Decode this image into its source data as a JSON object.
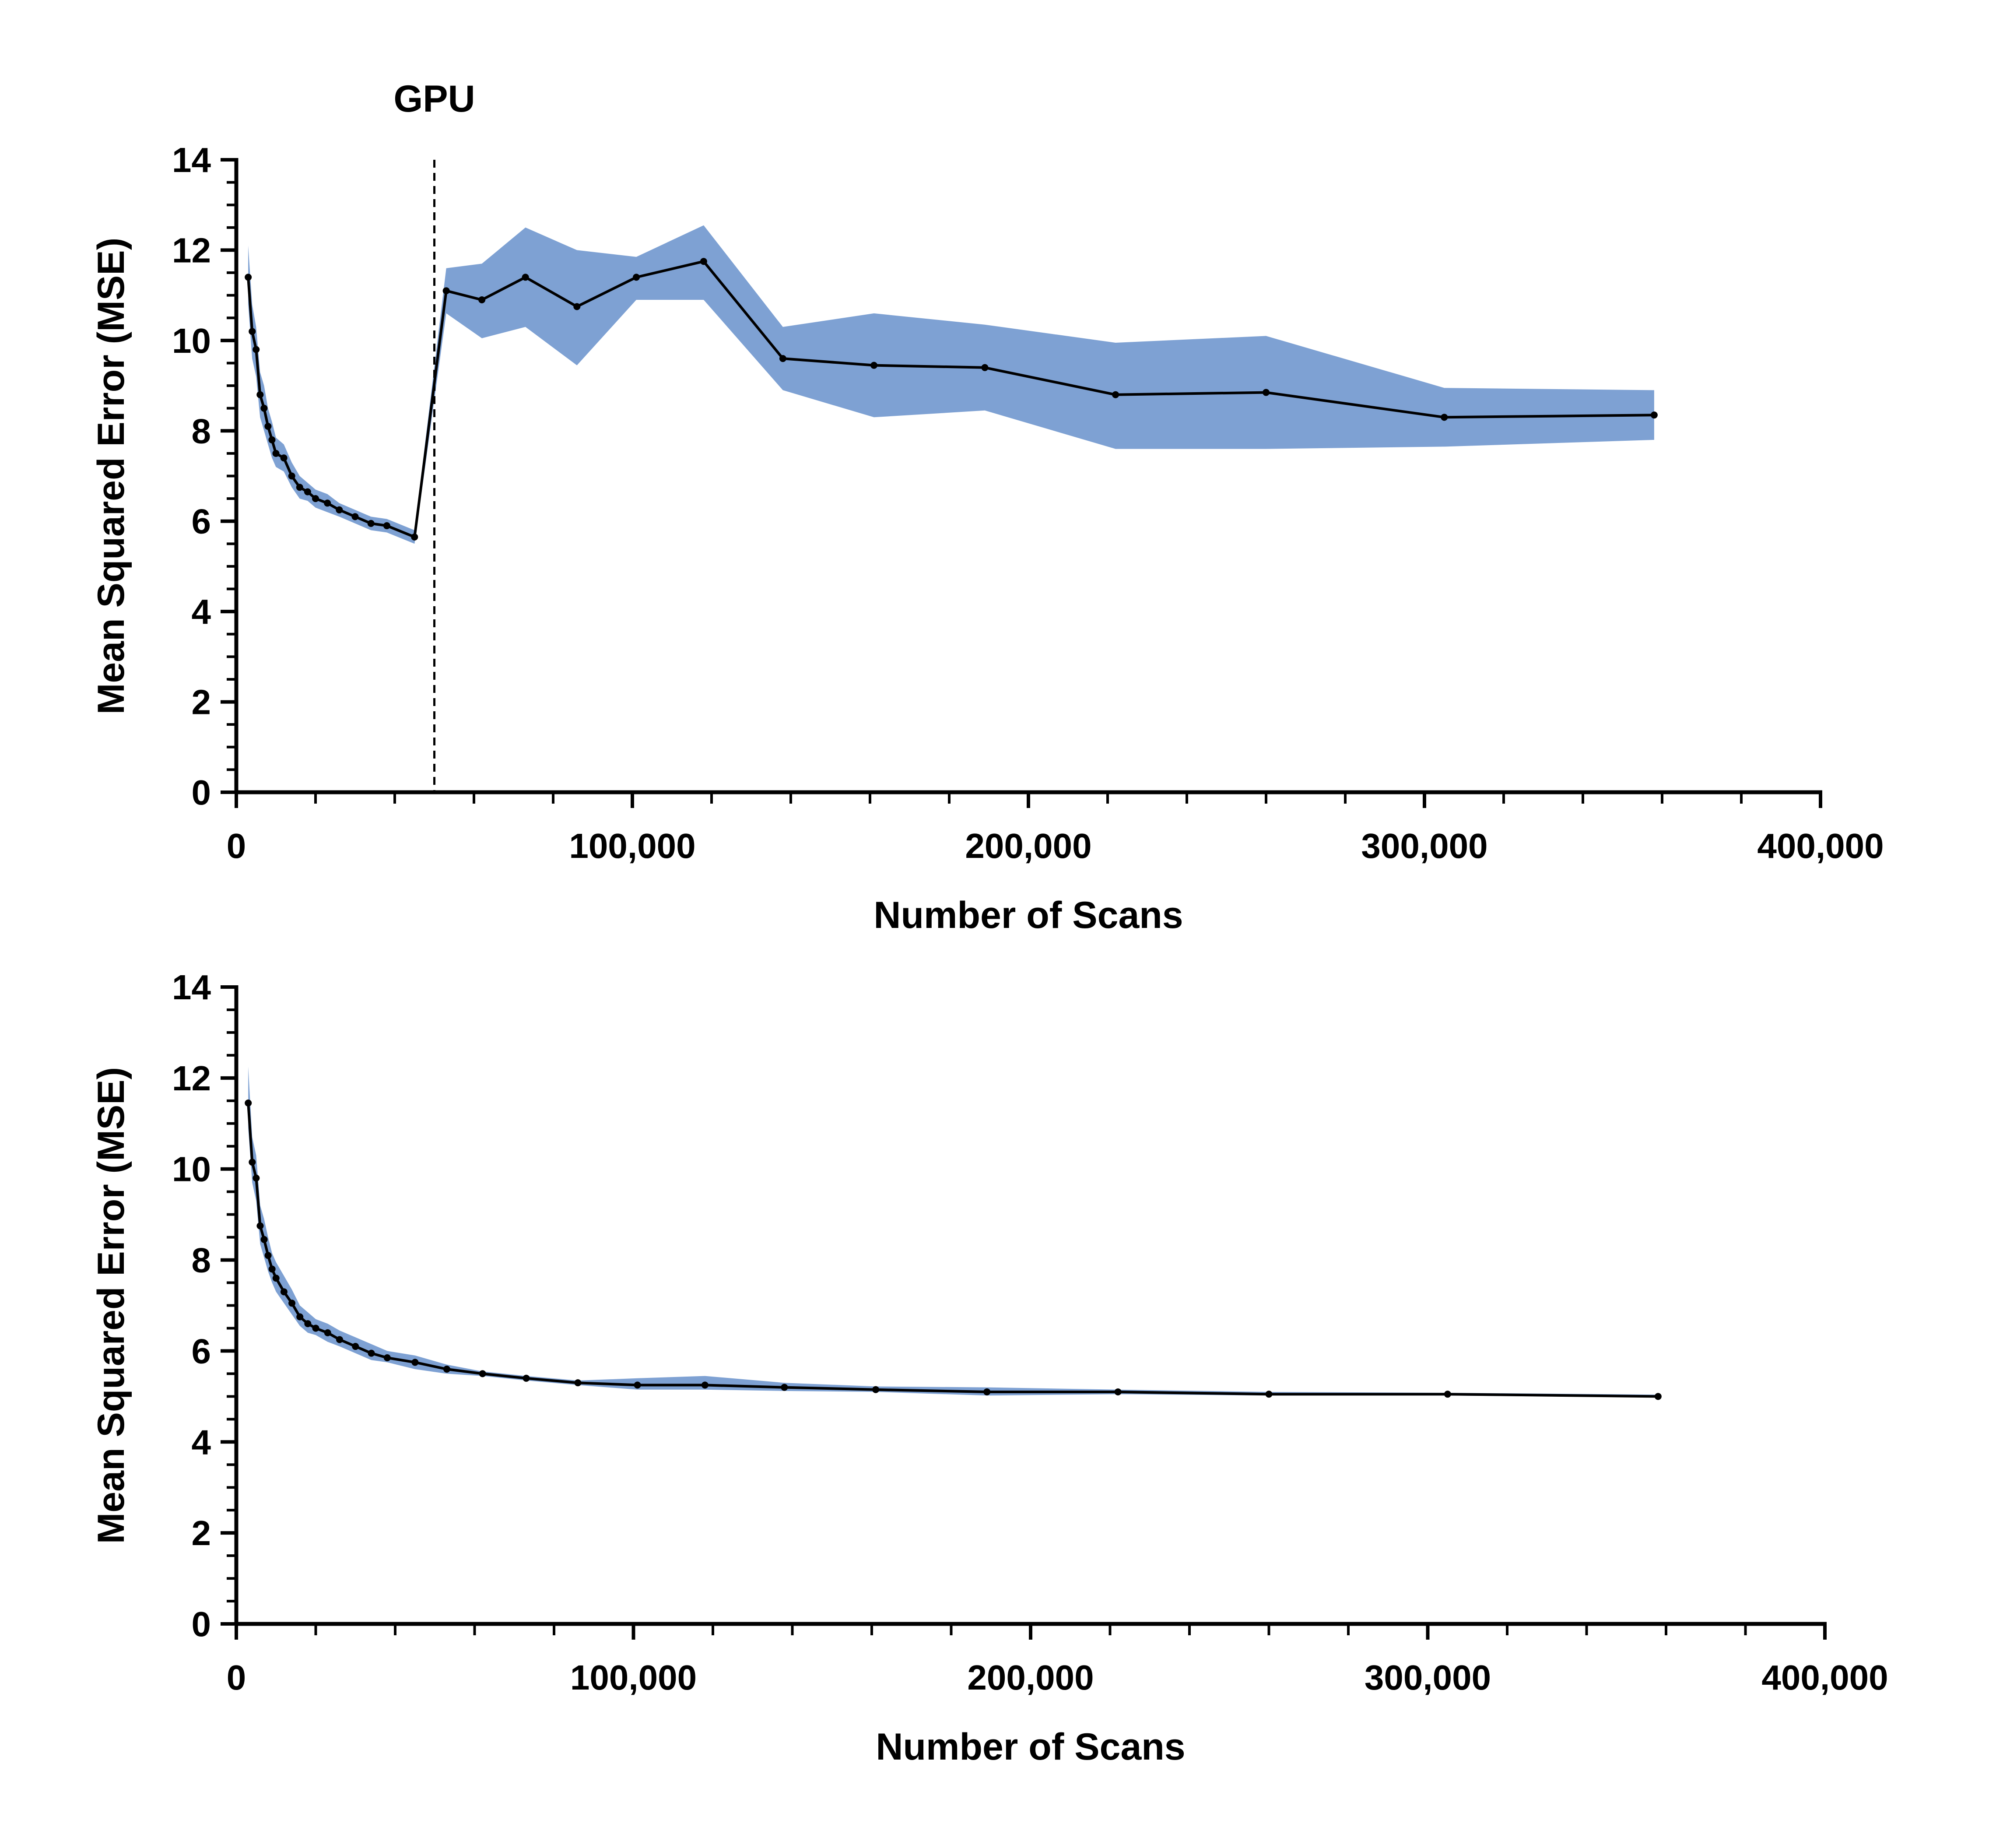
{
  "chart_data": [
    {
      "type": "line",
      "xlabel": "Number of Scans",
      "ylabel": "Mean Squared Error (MSE)",
      "xlim": [
        0,
        400000
      ],
      "ylim": [
        0,
        14
      ],
      "x_ticks": [
        0,
        100000,
        200000,
        300000,
        400000
      ],
      "x_tick_labels": [
        "0",
        "100,000",
        "200,000",
        "300,000",
        "400,000"
      ],
      "y_ticks": [
        0,
        2,
        4,
        6,
        8,
        10,
        12,
        14
      ],
      "y_tick_labels": [
        "0",
        "2",
        "4",
        "6",
        "8",
        "10",
        "12",
        "14"
      ],
      "grid": false,
      "legend": "none",
      "band_color": "#7ea1d3",
      "line_color": "#000000",
      "annotations": [
        {
          "type": "vline",
          "x": 50000,
          "label": "GPU",
          "style": "dashed"
        }
      ],
      "series": [
        {
          "x": [
            3000,
            4000,
            5000,
            6000,
            7000,
            8000,
            9000,
            10000,
            12000,
            14000,
            16000,
            18000,
            20000,
            23000,
            26000,
            30000,
            34000,
            38000,
            45000,
            53000,
            62000,
            73000,
            86000,
            101000,
            118000,
            138000,
            161000,
            189000,
            222000,
            260000,
            305000,
            358000
          ],
          "y": [
            11.4,
            10.2,
            9.8,
            8.8,
            8.5,
            8.1,
            7.8,
            7.5,
            7.4,
            7.0,
            6.75,
            6.65,
            6.5,
            6.4,
            6.25,
            6.1,
            5.95,
            5.9,
            5.65,
            11.1,
            10.9,
            11.4,
            10.75,
            11.4,
            11.75,
            9.6,
            9.45,
            9.4,
            8.8,
            8.85,
            8.3,
            8.35
          ],
          "lower": [
            10.8,
            9.6,
            9.2,
            8.3,
            8.0,
            7.7,
            7.4,
            7.2,
            7.1,
            6.75,
            6.5,
            6.45,
            6.3,
            6.2,
            6.1,
            5.95,
            5.8,
            5.75,
            5.5,
            10.6,
            10.05,
            10.3,
            9.45,
            10.9,
            10.9,
            8.9,
            8.3,
            8.45,
            7.6,
            7.6,
            7.65,
            7.8
          ],
          "upper": [
            12.1,
            10.8,
            10.3,
            9.3,
            9.0,
            8.5,
            8.2,
            7.85,
            7.7,
            7.3,
            7.0,
            6.85,
            6.7,
            6.6,
            6.4,
            6.25,
            6.1,
            6.05,
            5.8,
            11.6,
            11.7,
            12.5,
            12.0,
            11.85,
            12.55,
            10.3,
            10.6,
            10.35,
            9.95,
            10.1,
            8.95,
            8.9
          ]
        }
      ]
    },
    {
      "type": "line",
      "xlabel": "Number of Scans",
      "ylabel": "Mean Squared Error (MSE)",
      "xlim": [
        0,
        400000
      ],
      "ylim": [
        0,
        14
      ],
      "x_ticks": [
        0,
        100000,
        200000,
        300000,
        400000
      ],
      "x_tick_labels": [
        "0",
        "100,000",
        "200,000",
        "300,000",
        "400,000"
      ],
      "y_ticks": [
        0,
        2,
        4,
        6,
        8,
        10,
        12,
        14
      ],
      "y_tick_labels": [
        "0",
        "2",
        "4",
        "6",
        "8",
        "10",
        "12",
        "14"
      ],
      "grid": false,
      "legend": "none",
      "band_color": "#7ea1d3",
      "line_color": "#000000",
      "annotations": [],
      "series": [
        {
          "x": [
            3000,
            4000,
            5000,
            6000,
            7000,
            8000,
            9000,
            10000,
            12000,
            14000,
            16000,
            18000,
            20000,
            23000,
            26000,
            30000,
            34000,
            38000,
            45000,
            53000,
            62000,
            73000,
            86000,
            101000,
            118000,
            138000,
            161000,
            189000,
            222000,
            260000,
            305000,
            358000
          ],
          "y": [
            11.45,
            10.15,
            9.8,
            8.75,
            8.45,
            8.1,
            7.8,
            7.6,
            7.3,
            7.05,
            6.75,
            6.6,
            6.5,
            6.4,
            6.25,
            6.1,
            5.95,
            5.85,
            5.75,
            5.6,
            5.5,
            5.4,
            5.3,
            5.25,
            5.25,
            5.2,
            5.15,
            5.1,
            5.1,
            5.05,
            5.05,
            5.0
          ],
          "lower": [
            10.9,
            9.7,
            9.3,
            8.35,
            8.05,
            7.75,
            7.5,
            7.3,
            7.05,
            6.8,
            6.55,
            6.4,
            6.35,
            6.2,
            6.1,
            5.95,
            5.8,
            5.75,
            5.6,
            5.5,
            5.45,
            5.35,
            5.25,
            5.15,
            5.15,
            5.12,
            5.1,
            5.02,
            5.05,
            5.02,
            5.02,
            4.98
          ],
          "upper": [
            12.25,
            10.7,
            10.3,
            9.2,
            8.9,
            8.5,
            8.15,
            7.95,
            7.65,
            7.35,
            7.0,
            6.85,
            6.7,
            6.6,
            6.45,
            6.3,
            6.15,
            6.0,
            5.9,
            5.7,
            5.55,
            5.45,
            5.35,
            5.4,
            5.45,
            5.3,
            5.22,
            5.2,
            5.15,
            5.1,
            5.08,
            5.04
          ]
        }
      ]
    }
  ]
}
